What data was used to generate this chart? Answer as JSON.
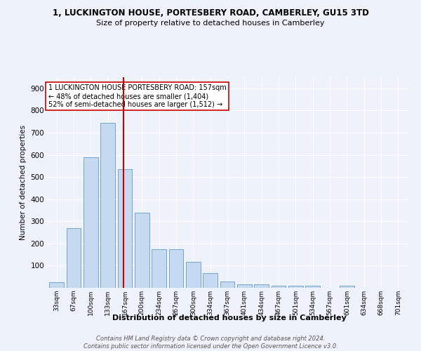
{
  "title": "1, LUCKINGTON HOUSE, PORTESBERY ROAD, CAMBERLEY, GU15 3TD",
  "subtitle": "Size of property relative to detached houses in Camberley",
  "xlabel": "Distribution of detached houses by size in Camberley",
  "ylabel": "Number of detached properties",
  "bar_labels": [
    "33sqm",
    "67sqm",
    "100sqm",
    "133sqm",
    "167sqm",
    "200sqm",
    "234sqm",
    "267sqm",
    "300sqm",
    "334sqm",
    "367sqm",
    "401sqm",
    "434sqm",
    "467sqm",
    "501sqm",
    "534sqm",
    "567sqm",
    "601sqm",
    "634sqm",
    "668sqm",
    "701sqm"
  ],
  "bar_values": [
    25,
    270,
    590,
    745,
    535,
    340,
    175,
    175,
    118,
    68,
    27,
    17,
    17,
    10,
    9,
    9,
    0,
    8,
    0,
    0,
    0
  ],
  "bar_color": "#c5d9f0",
  "bar_edge_color": "#6699cc",
  "background_color": "#eef3fb",
  "grid_color": "#ffffff",
  "vline_color": "#cc0000",
  "annotation_text": "1 LUCKINGTON HOUSE PORTESBERY ROAD: 157sqm\n← 48% of detached houses are smaller (1,404)\n52% of semi-detached houses are larger (1,512) →",
  "annotation_box_edge": "#cc0000",
  "footer_text": "Contains HM Land Registry data © Crown copyright and database right 2024.\nContains public sector information licensed under the Open Government Licence v3.0.",
  "ylim": [
    0,
    950
  ],
  "yticks": [
    0,
    100,
    200,
    300,
    400,
    500,
    600,
    700,
    800,
    900
  ]
}
